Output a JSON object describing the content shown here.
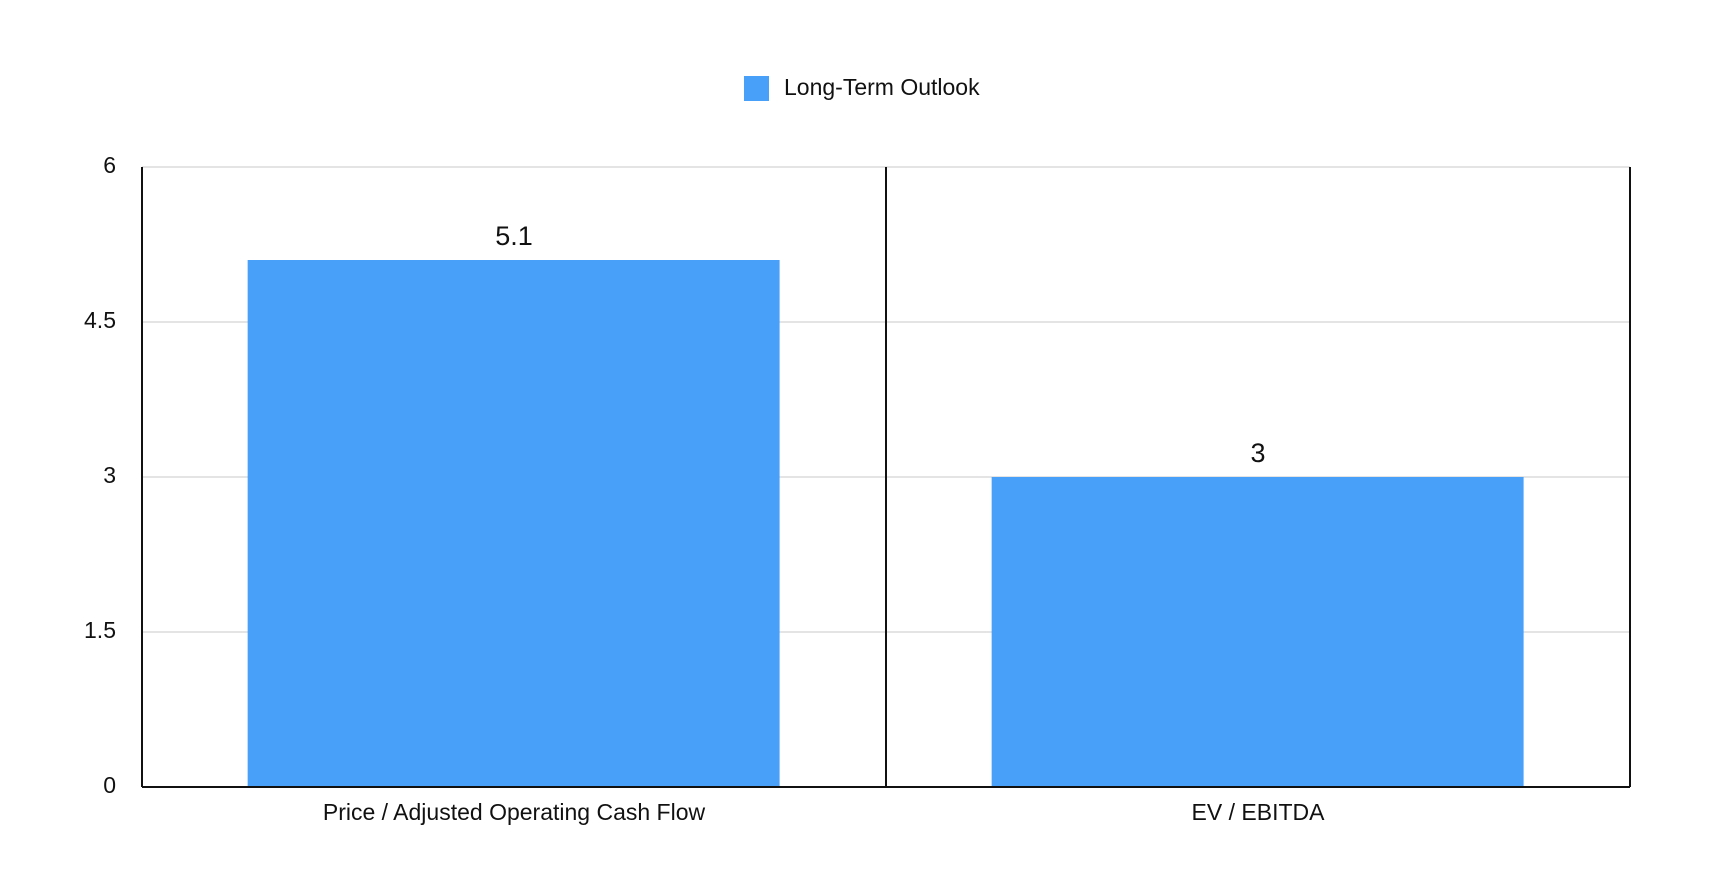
{
  "chart_data": {
    "type": "bar",
    "categories": [
      "Price / Adjusted Operating Cash Flow",
      "EV / EBITDA"
    ],
    "series": [
      {
        "name": "Long-Term Outlook",
        "color": "#48a0f8",
        "values": [
          5.1,
          3
        ]
      }
    ],
    "ylim": [
      0,
      6
    ],
    "yticks": [
      0,
      1.5,
      3,
      4.5,
      6
    ],
    "grid": true,
    "legend": "top",
    "data_labels": true
  }
}
